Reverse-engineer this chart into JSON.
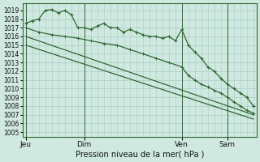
{
  "bg_color": "#cfe8e0",
  "grid_color": "#a8ccc4",
  "line_color": "#2d6a2d",
  "title": "Pression niveau de la mer( hPa )",
  "ylabel_values": [
    1005,
    1006,
    1007,
    1008,
    1009,
    1010,
    1011,
    1012,
    1013,
    1014,
    1015,
    1016,
    1017,
    1018,
    1019
  ],
  "ylim": [
    1004.5,
    1019.8
  ],
  "xtick_labels": [
    "Jeu",
    "Dim",
    "Ven",
    "Sam"
  ],
  "xtick_positions": [
    0,
    9,
    24,
    31
  ],
  "xlim": [
    -0.5,
    35.5
  ],
  "series1_x": [
    0,
    1,
    2,
    3,
    4,
    5,
    6,
    7,
    8,
    9,
    10,
    11,
    12,
    13,
    14,
    15,
    16,
    17,
    18,
    19,
    20,
    21,
    22,
    23,
    24,
    25,
    26,
    27,
    28,
    29,
    30,
    31,
    32,
    33,
    34,
    35
  ],
  "series1_y": [
    1017.5,
    1017.8,
    1018.0,
    1019.0,
    1019.1,
    1018.7,
    1019.0,
    1018.5,
    1017.0,
    1017.0,
    1016.8,
    1017.2,
    1017.5,
    1017.0,
    1017.0,
    1016.5,
    1016.8,
    1016.5,
    1016.2,
    1016.0,
    1016.0,
    1015.8,
    1016.0,
    1015.5,
    1016.8,
    1015.0,
    1014.2,
    1013.5,
    1012.5,
    1012.0,
    1011.2,
    1010.5,
    1010.0,
    1009.5,
    1009.0,
    1008.0
  ],
  "series2_x": [
    0,
    2,
    4,
    6,
    8,
    10,
    12,
    14,
    16,
    18,
    20,
    22,
    24,
    25,
    26,
    27,
    28,
    29,
    30,
    31,
    32,
    33,
    34,
    35
  ],
  "series2_y": [
    1017.0,
    1016.5,
    1016.2,
    1016.0,
    1015.8,
    1015.5,
    1015.2,
    1015.0,
    1014.5,
    1014.0,
    1013.5,
    1013.0,
    1012.5,
    1011.5,
    1011.0,
    1010.5,
    1010.2,
    1009.8,
    1009.5,
    1009.0,
    1008.5,
    1008.0,
    1007.5,
    1007.2
  ],
  "series3_x": [
    0,
    35
  ],
  "series3_y": [
    1016.0,
    1007.0
  ],
  "series4_x": [
    0,
    35
  ],
  "series4_y": [
    1015.0,
    1006.5
  ]
}
